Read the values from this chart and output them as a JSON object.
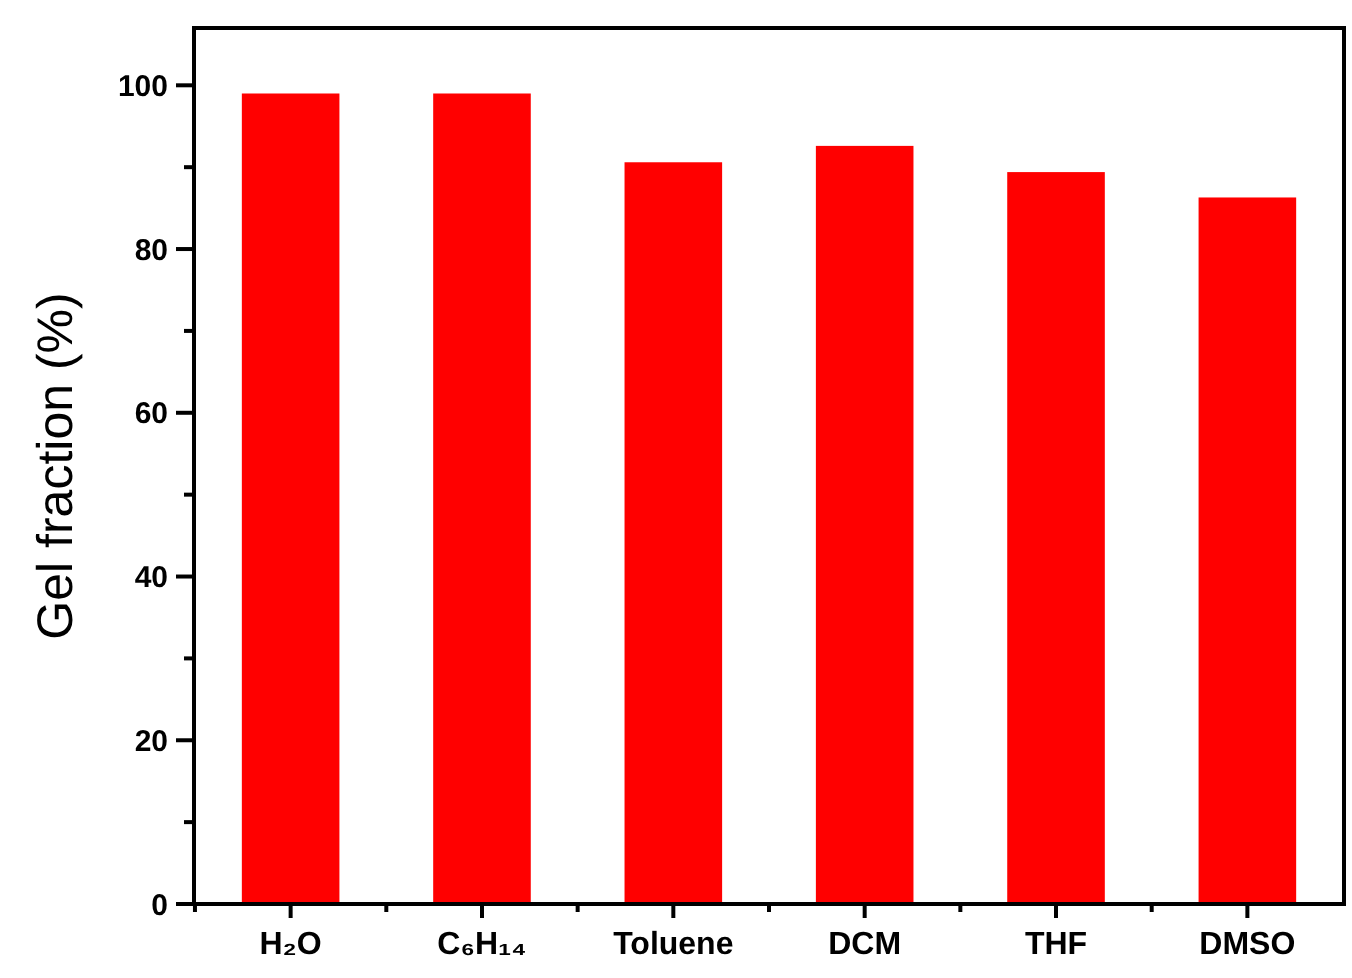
{
  "chart_data": {
    "type": "bar",
    "ylabel": "Gel fraction (%)",
    "categories": [
      "H₂O",
      "C₆H₁₄",
      "Toluene",
      "DCM",
      "THF",
      "DMSO"
    ],
    "values": [
      99,
      99,
      90.6,
      92.6,
      89.4,
      86.3
    ],
    "color": "#ff0000",
    "ylim": [
      0,
      107
    ],
    "yticks": [
      0,
      {
        "value": 10,
        "label": null
      },
      20,
      {
        "value": 30,
        "label": null
      },
      40,
      {
        "value": 50,
        "label": null
      },
      60,
      {
        "value": 70,
        "label": null
      },
      80,
      {
        "value": 90,
        "label": null
      },
      100
    ],
    "grid": false
  }
}
